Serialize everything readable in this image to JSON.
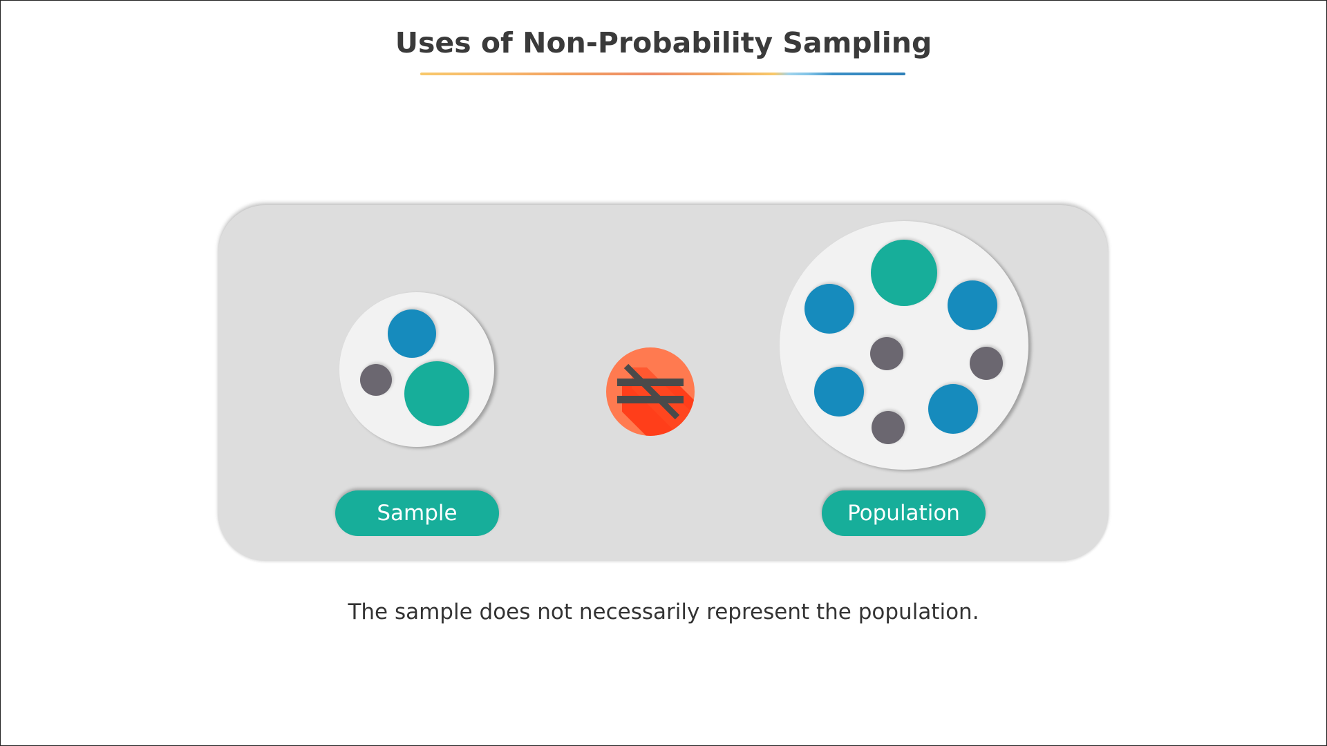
{
  "title": "Uses of Non-Probability Sampling",
  "sample_label": "Sample",
  "population_label": "Population",
  "caption": "The sample does not necessarily represent the population.",
  "symbol_icon": "not-equal-icon",
  "colors": {
    "title_text": "#3a3a3a",
    "panel": "#dddddd",
    "plate": "#f2f2f2",
    "blue": "#168bbd",
    "teal": "#17ae9a",
    "gray": "#6b6770",
    "symbol_bg": "#ff5b2e",
    "symbol_stroke": "#4a4a4a"
  }
}
